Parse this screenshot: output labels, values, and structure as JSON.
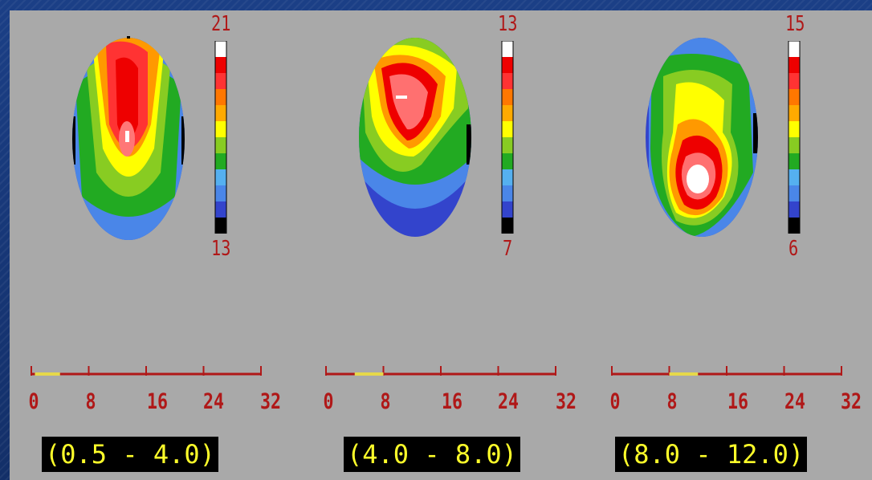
{
  "maps": [
    {
      "scale_max": "21",
      "scale_min": "13",
      "band": "(0.5 - 4.0)",
      "ticks": [
        "0",
        "8",
        "16",
        "24",
        "32"
      ],
      "band_range_hz": [
        0.5,
        4.0
      ]
    },
    {
      "scale_max": "13",
      "scale_min": "7",
      "band": "(4.0 - 8.0)",
      "ticks": [
        "0",
        "8",
        "16",
        "24",
        "32"
      ],
      "band_range_hz": [
        4.0,
        8.0
      ]
    },
    {
      "scale_max": "15",
      "scale_min": "6",
      "band": "(8.0 - 12.0)",
      "ticks": [
        "0",
        "8",
        "16",
        "24",
        "32"
      ],
      "band_range_hz": [
        8.0,
        12.0
      ]
    }
  ],
  "colorscale": [
    "#000000",
    "#3344cc",
    "#4a86e8",
    "#55b0f0",
    "#22aa22",
    "#88cc22",
    "#ffff00",
    "#ffaa00",
    "#ff7700",
    "#ff3333",
    "#ee0000",
    "#ffffff"
  ],
  "axis_color": "#b01818",
  "highlight_color": "#e6d84a"
}
